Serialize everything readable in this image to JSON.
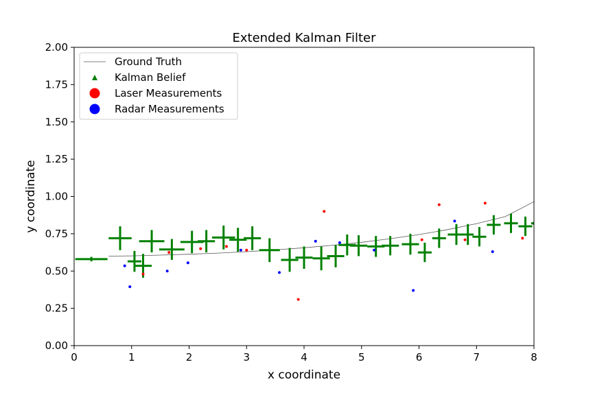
{
  "chart_data": {
    "type": "scatter",
    "title": "Extended Kalman Filter",
    "xlabel": "x coordinate",
    "ylabel": "y coordinate",
    "xlim": [
      0,
      8
    ],
    "ylim": [
      0.0,
      2.0
    ],
    "xticks": [
      "0",
      "1",
      "2",
      "3",
      "4",
      "5",
      "6",
      "7",
      "8"
    ],
    "yticks": [
      "0.00",
      "0.25",
      "0.50",
      "0.75",
      "1.00",
      "1.25",
      "1.50",
      "1.75",
      "2.00"
    ],
    "grid": false,
    "legend_position": "top-left",
    "legend": [
      {
        "label": "Ground Truth",
        "marker": "line",
        "color": "#555555"
      },
      {
        "label": "Kalman Belief",
        "marker": "triangle",
        "color": "#008000"
      },
      {
        "label": "Laser Measurements",
        "marker": "circle",
        "color": "#ff0000"
      },
      {
        "label": "Radar Measurements",
        "marker": "circle",
        "color": "#0000ff"
      }
    ],
    "ground_truth": {
      "color": "#555555",
      "x": [
        0.6,
        1.0,
        1.5,
        2.0,
        2.5,
        3.0,
        3.5,
        4.0,
        4.5,
        5.0,
        5.5,
        6.0,
        6.5,
        7.0,
        7.5,
        8.0
      ],
      "y": [
        0.6,
        0.602,
        0.607,
        0.613,
        0.62,
        0.63,
        0.642,
        0.656,
        0.673,
        0.693,
        0.717,
        0.745,
        0.778,
        0.818,
        0.865,
        0.965
      ]
    },
    "kalman_belief": {
      "color": "#008000",
      "points": [
        {
          "x": 0.3,
          "y": 0.58,
          "sx": 0.28,
          "sy": 0.015
        },
        {
          "x": 0.8,
          "y": 0.72,
          "sx": 0.2,
          "sy": 0.08
        },
        {
          "x": 1.05,
          "y": 0.565,
          "sx": 0.12,
          "sy": 0.07
        },
        {
          "x": 1.2,
          "y": 0.535,
          "sx": 0.15,
          "sy": 0.08
        },
        {
          "x": 1.35,
          "y": 0.7,
          "sx": 0.22,
          "sy": 0.075
        },
        {
          "x": 1.7,
          "y": 0.645,
          "sx": 0.22,
          "sy": 0.07
        },
        {
          "x": 2.05,
          "y": 0.695,
          "sx": 0.2,
          "sy": 0.075
        },
        {
          "x": 2.3,
          "y": 0.7,
          "sx": 0.15,
          "sy": 0.075
        },
        {
          "x": 2.6,
          "y": 0.725,
          "sx": 0.2,
          "sy": 0.08
        },
        {
          "x": 2.85,
          "y": 0.71,
          "sx": 0.15,
          "sy": 0.08
        },
        {
          "x": 3.1,
          "y": 0.72,
          "sx": 0.15,
          "sy": 0.08
        },
        {
          "x": 3.4,
          "y": 0.64,
          "sx": 0.18,
          "sy": 0.08
        },
        {
          "x": 3.75,
          "y": 0.575,
          "sx": 0.15,
          "sy": 0.08
        },
        {
          "x": 4.0,
          "y": 0.59,
          "sx": 0.15,
          "sy": 0.075
        },
        {
          "x": 4.3,
          "y": 0.585,
          "sx": 0.15,
          "sy": 0.08
        },
        {
          "x": 4.55,
          "y": 0.6,
          "sx": 0.15,
          "sy": 0.075
        },
        {
          "x": 4.75,
          "y": 0.675,
          "sx": 0.15,
          "sy": 0.07
        },
        {
          "x": 4.95,
          "y": 0.67,
          "sx": 0.15,
          "sy": 0.07
        },
        {
          "x": 5.25,
          "y": 0.665,
          "sx": 0.15,
          "sy": 0.07
        },
        {
          "x": 5.5,
          "y": 0.67,
          "sx": 0.15,
          "sy": 0.065
        },
        {
          "x": 5.85,
          "y": 0.68,
          "sx": 0.15,
          "sy": 0.07
        },
        {
          "x": 6.1,
          "y": 0.625,
          "sx": 0.12,
          "sy": 0.065
        },
        {
          "x": 6.35,
          "y": 0.72,
          "sx": 0.12,
          "sy": 0.065
        },
        {
          "x": 6.65,
          "y": 0.745,
          "sx": 0.15,
          "sy": 0.07
        },
        {
          "x": 6.85,
          "y": 0.745,
          "sx": 0.1,
          "sy": 0.07
        },
        {
          "x": 7.05,
          "y": 0.73,
          "sx": 0.12,
          "sy": 0.065
        },
        {
          "x": 7.3,
          "y": 0.81,
          "sx": 0.12,
          "sy": 0.065
        },
        {
          "x": 7.6,
          "y": 0.82,
          "sx": 0.12,
          "sy": 0.065
        },
        {
          "x": 7.85,
          "y": 0.8,
          "sx": 0.12,
          "sy": 0.065
        },
        {
          "x": 8.0,
          "y": 0.82,
          "sx": 0.05,
          "sy": 0.01
        }
      ]
    },
    "laser_measurements": {
      "color": "#ff0000",
      "points": [
        {
          "x": 1.2,
          "y": 0.48
        },
        {
          "x": 1.65,
          "y": 0.625
        },
        {
          "x": 2.2,
          "y": 0.65
        },
        {
          "x": 2.65,
          "y": 0.665
        },
        {
          "x": 3.0,
          "y": 0.64
        },
        {
          "x": 3.9,
          "y": 0.31
        },
        {
          "x": 4.35,
          "y": 0.9
        },
        {
          "x": 6.05,
          "y": 0.71
        },
        {
          "x": 6.35,
          "y": 0.945
        },
        {
          "x": 6.8,
          "y": 0.71
        },
        {
          "x": 7.15,
          "y": 0.955
        },
        {
          "x": 7.8,
          "y": 0.72
        }
      ]
    },
    "radar_measurements": {
      "color": "#0000ff",
      "points": [
        {
          "x": 0.88,
          "y": 0.535
        },
        {
          "x": 0.97,
          "y": 0.395
        },
        {
          "x": 1.62,
          "y": 0.5
        },
        {
          "x": 1.98,
          "y": 0.555
        },
        {
          "x": 2.9,
          "y": 0.64
        },
        {
          "x": 3.57,
          "y": 0.49
        },
        {
          "x": 4.2,
          "y": 0.7
        },
        {
          "x": 4.62,
          "y": 0.69
        },
        {
          "x": 5.22,
          "y": 0.64
        },
        {
          "x": 5.9,
          "y": 0.37
        },
        {
          "x": 6.62,
          "y": 0.835
        },
        {
          "x": 7.28,
          "y": 0.63
        }
      ]
    }
  }
}
